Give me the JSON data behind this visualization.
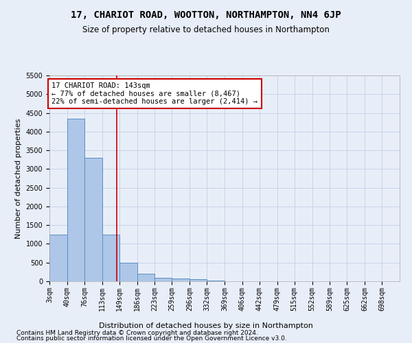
{
  "title": "17, CHARIOT ROAD, WOOTTON, NORTHAMPTON, NN4 6JP",
  "subtitle": "Size of property relative to detached houses in Northampton",
  "xlabel": "Distribution of detached houses by size in Northampton",
  "ylabel": "Number of detached properties",
  "footer_line1": "Contains HM Land Registry data © Crown copyright and database right 2024.",
  "footer_line2": "Contains public sector information licensed under the Open Government Licence v3.0.",
  "annotation_title": "17 CHARIOT ROAD: 143sqm",
  "annotation_line1": "← 77% of detached houses are smaller (8,467)",
  "annotation_line2": "22% of semi-detached houses are larger (2,414) →",
  "property_size": 143,
  "bin_edges": [
    3,
    40,
    76,
    113,
    149,
    186,
    223,
    259,
    296,
    332,
    369,
    406,
    442,
    479,
    515,
    552,
    589,
    625,
    662,
    698,
    735
  ],
  "bar_heights": [
    1250,
    4350,
    3300,
    1250,
    490,
    210,
    90,
    70,
    60,
    10,
    5,
    0,
    0,
    0,
    0,
    0,
    0,
    0,
    0,
    0
  ],
  "bar_color": "#aec6e8",
  "bar_edge_color": "#5a8fc3",
  "red_line_color": "#cc0000",
  "annotation_box_edge_color": "#cc0000",
  "annotation_box_face_color": "#ffffff",
  "grid_color": "#c8d4e8",
  "background_color": "#e8eef8",
  "plot_bg_color": "#e8eef8",
  "ylim": [
    0,
    5500
  ],
  "title_fontsize": 10,
  "subtitle_fontsize": 8.5,
  "axis_label_fontsize": 8,
  "tick_fontsize": 7,
  "annotation_fontsize": 7.5,
  "footer_fontsize": 6.5
}
